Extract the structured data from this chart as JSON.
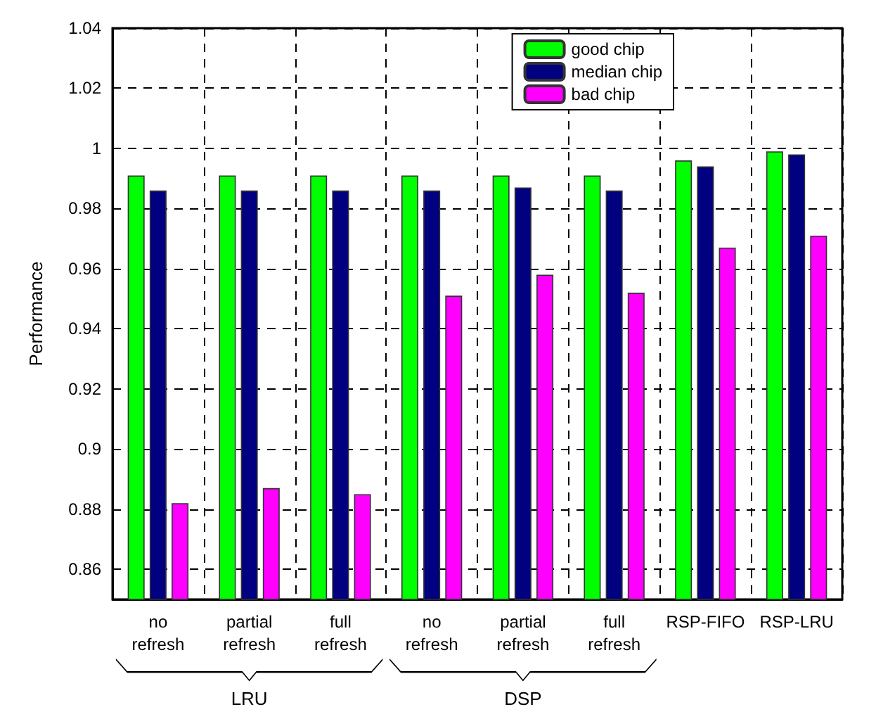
{
  "chart_data": {
    "type": "bar",
    "ylabel": "Performance",
    "categories": [
      "no\nrefresh",
      "partial\nrefresh",
      "full\nrefresh",
      "no\nrefresh",
      "partial\nrefresh",
      "full\nrefresh",
      "RSP-FIFO",
      "RSP-LRU"
    ],
    "series": [
      {
        "name": "good chip",
        "color": "#00ff00",
        "values": [
          0.991,
          0.991,
          0.991,
          0.991,
          0.991,
          0.991,
          0.996,
          0.999
        ]
      },
      {
        "name": "median chip",
        "color": "#000080",
        "values": [
          0.986,
          0.986,
          0.986,
          0.986,
          0.987,
          0.986,
          0.994,
          0.998
        ]
      },
      {
        "name": "bad chip",
        "color": "#ff00ff",
        "values": [
          0.882,
          0.887,
          0.885,
          0.951,
          0.958,
          0.952,
          0.967,
          0.971
        ]
      }
    ],
    "ylim": [
      0.85,
      1.04
    ],
    "yticks": [
      0.86,
      0.88,
      0.9,
      0.92,
      0.94,
      0.96,
      0.98,
      1,
      1.02,
      1.04
    ],
    "grid": true,
    "legend": "top right",
    "annotations": [
      "LRU",
      "DSP"
    ]
  }
}
